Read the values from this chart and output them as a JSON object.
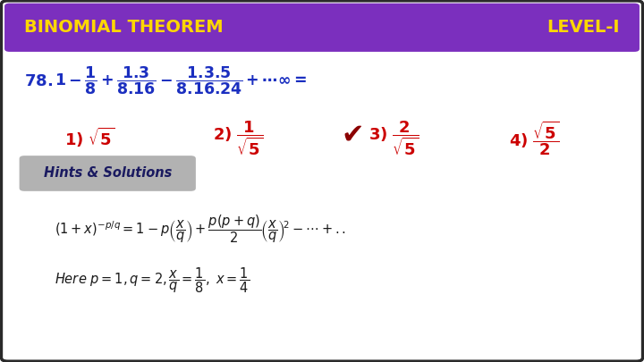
{
  "header_bg": "#7B2FBE",
  "header_text_left": "BINOMIAL THEOREM",
  "header_text_right": "LEVEL-I",
  "header_text_color": "#FFD700",
  "bg_color": "#FFFFFF",
  "border_color": "#2A2A2A",
  "question_color": "#1B2FC0",
  "options_color": "#CC0000",
  "checkmark_color": "#8B0000",
  "hints_bg": "#AAAAAA",
  "hints_text": "Hints & Solutions",
  "hints_text_color": "#1A1A60",
  "formula_color": "#1A1A1A"
}
